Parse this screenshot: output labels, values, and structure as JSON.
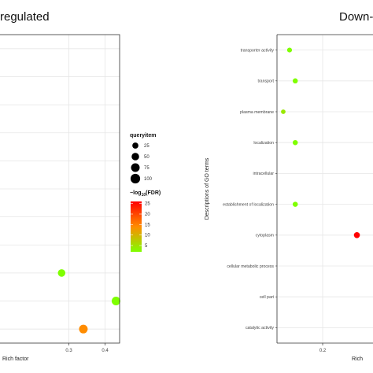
{
  "chart_data": [
    {
      "type": "scatter",
      "panel": "left",
      "title": "regulated",
      "xlabel": "Rich factor",
      "ylabel": "",
      "xlim": [
        0.11,
        0.44
      ],
      "xticks": [
        0.3,
        0.4
      ],
      "n_rows": 11,
      "grid": true,
      "points": [
        {
          "row": 2,
          "x": 0.28,
          "size": 50,
          "fdr": 5
        },
        {
          "row": 1,
          "x": 0.43,
          "size": 75,
          "fdr": 5
        },
        {
          "row": 0,
          "x": 0.34,
          "size": 75,
          "fdr": 15
        }
      ]
    },
    {
      "type": "scatter",
      "panel": "right",
      "title": "Down-",
      "xlabel": "Rich",
      "ylabel": "Descriptions of GO terms",
      "xlim": [
        0.12,
        0.3
      ],
      "xticks": [
        0.2
      ],
      "grid": true,
      "categories": [
        "transporter activity",
        "transport",
        "plasma membrane",
        "localization",
        "intracellular",
        "establishment of localization",
        "cytoplasm",
        "cellular metabolic process",
        "cell part",
        "catalytic activity"
      ],
      "points": [
        {
          "category": "transporter activity",
          "x": 0.142,
          "size": 25,
          "fdr": 4
        },
        {
          "category": "transport",
          "x": 0.152,
          "size": 30,
          "fdr": 4
        },
        {
          "category": "plasma membrane",
          "x": 0.131,
          "size": 20,
          "fdr": 7
        },
        {
          "category": "localization",
          "x": 0.152,
          "size": 30,
          "fdr": 4
        },
        {
          "category": "establishment of localization",
          "x": 0.152,
          "size": 30,
          "fdr": 4
        },
        {
          "category": "cytoplasm",
          "x": 0.26,
          "size": 50,
          "fdr": 25
        }
      ]
    }
  ],
  "legend": {
    "size_title": "queryitem",
    "size_items": [
      {
        "label": "25",
        "value": 25
      },
      {
        "label": "50",
        "value": 50
      },
      {
        "label": "75",
        "value": 75
      },
      {
        "label": "100",
        "value": 100
      }
    ],
    "color_title": "−log10(FDR)",
    "color_ticks": [
      25,
      20,
      15,
      10,
      5
    ],
    "color_low": "#7fff00",
    "color_high": "#ff0000"
  }
}
